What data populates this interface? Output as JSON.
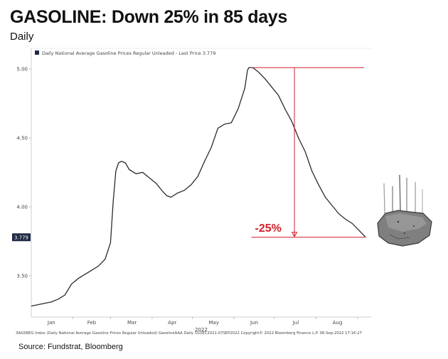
{
  "header": {
    "title": "GASOLINE: Down 25% in 85 days",
    "subtitle": "Daily"
  },
  "source": "Source: Fundstrat, Bloomberg",
  "footer_note": "3AGSREG Index (Daily National Average Gasoline Prices Regular Unleaded) GasolineAAA  Daily 31DEC2021-07SEP2022  Copyright© 2022 Bloomberg Finance L.P.  06-Sep-2022 17:16:27",
  "colors": {
    "line": "#2b2b2b",
    "annotation": "#d01f2b",
    "last_price_badge": "#1f2a44"
  },
  "decoration": {
    "icon": "falling-rock-icon"
  },
  "chart_data": {
    "type": "line",
    "legend": "Daily National Average Gasoline Prices Regular Unleaded - Last Price 3.779",
    "last_price_label": "3.779",
    "last_price": 3.779,
    "year_label": "2022",
    "xlim": [
      "2021-12-31",
      "2022-09-07"
    ],
    "ylim": [
      3.2,
      5.15
    ],
    "y_ticks": [
      {
        "value": 3.5,
        "label": "3.50"
      },
      {
        "value": 4.0,
        "label": "4.00"
      },
      {
        "value": 4.5,
        "label": "4.50"
      },
      {
        "value": 5.0,
        "label": "5.00"
      }
    ],
    "x_ticks": [
      {
        "date": "2022-01-15",
        "label": "Jan"
      },
      {
        "date": "2022-02-14",
        "label": "Feb"
      },
      {
        "date": "2022-03-16",
        "label": "Mar"
      },
      {
        "date": "2022-04-15",
        "label": "Apr"
      },
      {
        "date": "2022-05-16",
        "label": "May"
      },
      {
        "date": "2022-06-15",
        "label": "Jun"
      },
      {
        "date": "2022-07-16",
        "label": "Jul"
      },
      {
        "date": "2022-08-16",
        "label": "Aug"
      }
    ],
    "series": [
      {
        "x": [
          "2021-12-31",
          "2022-01-05",
          "2022-01-10",
          "2022-01-15",
          "2022-01-20",
          "2022-01-25",
          "2022-01-30",
          "2022-02-04",
          "2022-02-09",
          "2022-02-14",
          "2022-02-19",
          "2022-02-24",
          "2022-02-28",
          "2022-03-02",
          "2022-03-04",
          "2022-03-06",
          "2022-03-08",
          "2022-03-11",
          "2022-03-14",
          "2022-03-19",
          "2022-03-24",
          "2022-03-29",
          "2022-04-03",
          "2022-04-08",
          "2022-04-11",
          "2022-04-14",
          "2022-04-19",
          "2022-04-24",
          "2022-04-29",
          "2022-05-04",
          "2022-05-09",
          "2022-05-14",
          "2022-05-19",
          "2022-05-24",
          "2022-05-29",
          "2022-06-03",
          "2022-06-08",
          "2022-06-10",
          "2022-06-11",
          "2022-06-14",
          "2022-06-18",
          "2022-06-23",
          "2022-06-28",
          "2022-07-03",
          "2022-07-08",
          "2022-07-13",
          "2022-07-18",
          "2022-07-23",
          "2022-07-28",
          "2022-08-02",
          "2022-08-07",
          "2022-08-12",
          "2022-08-17",
          "2022-08-22",
          "2022-08-27",
          "2022-09-01",
          "2022-09-06"
        ],
        "y": [
          3.28,
          3.29,
          3.3,
          3.31,
          3.33,
          3.36,
          3.44,
          3.48,
          3.51,
          3.54,
          3.57,
          3.62,
          3.74,
          4.04,
          4.26,
          4.32,
          4.33,
          4.32,
          4.27,
          4.24,
          4.25,
          4.21,
          4.17,
          4.11,
          4.08,
          4.07,
          4.1,
          4.12,
          4.16,
          4.22,
          4.33,
          4.43,
          4.57,
          4.6,
          4.61,
          4.71,
          4.86,
          4.99,
          5.01,
          5.01,
          4.98,
          4.93,
          4.87,
          4.81,
          4.71,
          4.62,
          4.5,
          4.4,
          4.26,
          4.16,
          4.07,
          4.01,
          3.95,
          3.91,
          3.88,
          3.83,
          3.78
        ]
      }
    ],
    "annotation": {
      "label": "-25%",
      "from_date": "2022-06-14",
      "from_value": 5.01,
      "to_date": "2022-09-06",
      "to_value": 3.779
    }
  }
}
